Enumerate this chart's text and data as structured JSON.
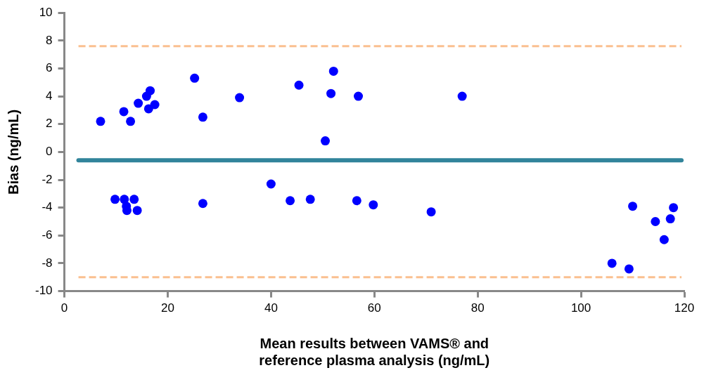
{
  "chart_data": {
    "type": "scatter",
    "xlabel": "Mean results between VAMS® and\nreference plasma analysis (ng/mL)",
    "ylabel": "Bias (ng/mL)",
    "xlim": [
      0,
      120
    ],
    "xticks": [
      0,
      20,
      40,
      60,
      80,
      100,
      120
    ],
    "ylim": [
      -10,
      10
    ],
    "yticks": [
      -10,
      -8,
      -6,
      -4,
      -2,
      0,
      2,
      4,
      6,
      8,
      10
    ],
    "grid": false,
    "legend": false,
    "marker": "circle",
    "ref_lines": [
      {
        "axis": "y",
        "value": 7.6,
        "color": "#fac090",
        "line_style": "dashed"
      },
      {
        "axis": "y",
        "value": -0.6,
        "color": "#31849b",
        "line_style": "solid"
      },
      {
        "axis": "y",
        "value": -9.0,
        "color": "#fac090",
        "line_style": "dashed"
      }
    ],
    "series": [
      {
        "color": "#0000ff",
        "x": [
          7.0,
          11.5,
          12.8,
          14.3,
          15.9,
          16.6,
          16.3,
          17.5,
          25.2,
          26.8,
          33.9,
          45.4,
          51.6,
          52.1,
          50.5,
          56.9,
          77.0,
          9.8,
          11.6,
          12.0,
          12.1,
          13.5,
          14.1,
          26.8,
          40.0,
          43.7,
          47.6,
          56.6,
          59.8,
          71.0,
          106.0,
          109.3,
          110.0,
          114.4,
          116.1,
          117.3,
          117.9
        ],
        "values": [
          2.2,
          2.9,
          2.2,
          3.5,
          4.0,
          4.4,
          3.1,
          3.4,
          5.3,
          2.5,
          3.9,
          4.8,
          4.2,
          5.8,
          0.8,
          4.0,
          4.0,
          -3.4,
          -3.4,
          -3.9,
          -4.2,
          -3.4,
          -4.2,
          -3.7,
          -2.3,
          -3.5,
          -3.4,
          -3.5,
          -3.8,
          -4.3,
          -8.0,
          -8.4,
          -3.9,
          -5.0,
          -6.3,
          -4.8,
          -4.0
        ]
      }
    ]
  }
}
